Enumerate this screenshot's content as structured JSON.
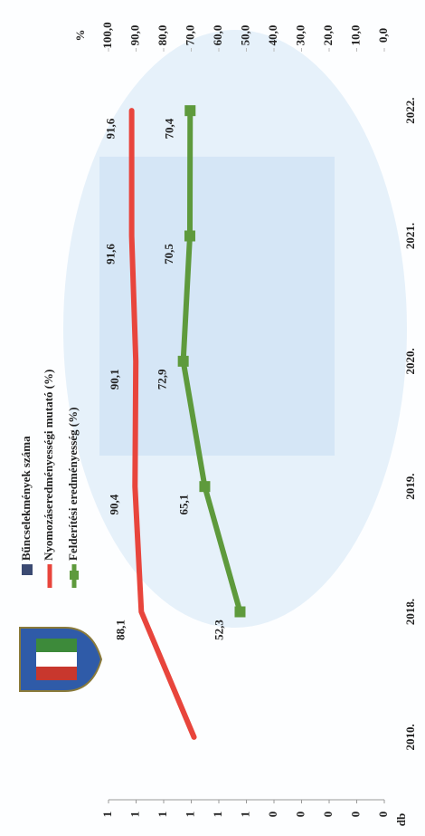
{
  "chart_data": {
    "type": "line",
    "categories": [
      "2010.",
      "2018.",
      "2019.",
      "2020.",
      "2021.",
      "2022."
    ],
    "ylabel": "db",
    "ylim": [
      0,
      1
    ],
    "yticks": [
      {
        "value": 0,
        "label": "0"
      },
      {
        "value": 0.1,
        "label": "0"
      },
      {
        "value": 0.2,
        "label": "0"
      },
      {
        "value": 0.3,
        "label": "0"
      },
      {
        "value": 0.4,
        "label": "0"
      },
      {
        "value": 0.5,
        "label": "1"
      },
      {
        "value": 0.6,
        "label": "1"
      },
      {
        "value": 0.7,
        "label": "1"
      },
      {
        "value": 0.8,
        "label": "1"
      },
      {
        "value": 0.9,
        "label": "1"
      },
      {
        "value": 1,
        "label": "1"
      }
    ],
    "y2label": "%",
    "y2lim": [
      0,
      100
    ],
    "y2ticks": [
      {
        "value": 0,
        "label": "0,0"
      },
      {
        "value": 10,
        "label": "10,0"
      },
      {
        "value": 20,
        "label": "20,0"
      },
      {
        "value": 30,
        "label": "30,0"
      },
      {
        "value": 40,
        "label": "40,0"
      },
      {
        "value": 50,
        "label": "50,0"
      },
      {
        "value": 60,
        "label": "60,0"
      },
      {
        "value": 70,
        "label": "70,0"
      },
      {
        "value": 80,
        "label": "80,0"
      },
      {
        "value": 90,
        "label": "90,0"
      },
      {
        "value": 100,
        "label": "100,0"
      }
    ],
    "series": [
      {
        "name": "Bűncselekmények száma",
        "color": "#3b4a72",
        "axis": "y",
        "marker": "bar",
        "values": [
          null,
          null,
          null,
          null,
          null,
          null
        ]
      },
      {
        "name": "Nyomozáseredményességi mutató (%)",
        "color": "#e8453c",
        "axis": "y2",
        "marker": "none",
        "values": [
          69,
          88.1,
          90.4,
          90.1,
          91.6,
          91.6
        ],
        "value_labels": [
          null,
          "88,1",
          "90,4",
          "90,1",
          "91,6",
          "91,6"
        ]
      },
      {
        "name": "Felderítési eredményesség (%)",
        "color": "#5e9a3c",
        "axis": "y2",
        "marker": "square",
        "values": [
          null,
          52.3,
          65.1,
          72.9,
          70.5,
          70.4
        ],
        "value_labels": [
          null,
          "52,3",
          "65,1",
          "72,9",
          "70,5",
          "70,4"
        ]
      }
    ]
  }
}
